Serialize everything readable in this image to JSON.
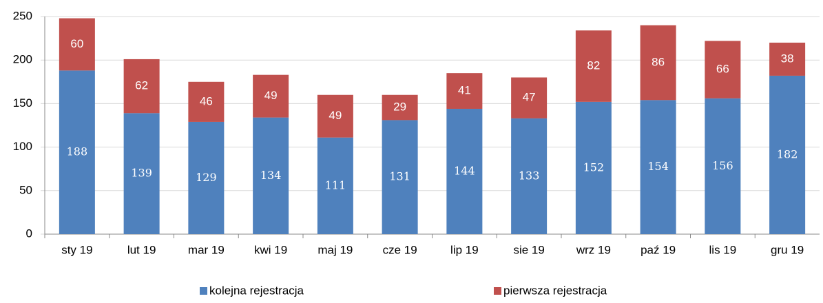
{
  "chart_data": {
    "type": "stacked_bar",
    "categories": [
      "sty 19",
      "lut 19",
      "mar 19",
      "kwi 19",
      "maj 19",
      "cze 19",
      "lip 19",
      "sie 19",
      "wrz 19",
      "paź 19",
      "lis 19",
      "gru 19"
    ],
    "series": [
      {
        "name": "kolejna rejestracja",
        "color": "#4f81bd",
        "values": [
          188,
          139,
          129,
          134,
          111,
          131,
          144,
          133,
          152,
          154,
          156,
          182
        ]
      },
      {
        "name": "pierwsza rejestracja",
        "color": "#c0504d",
        "values": [
          60,
          62,
          46,
          49,
          49,
          29,
          41,
          47,
          82,
          86,
          66,
          38
        ]
      }
    ],
    "ylim": [
      0,
      250
    ],
    "yticks": [
      0,
      50,
      100,
      150,
      200,
      250
    ],
    "grid": true,
    "legend": "bottom"
  }
}
